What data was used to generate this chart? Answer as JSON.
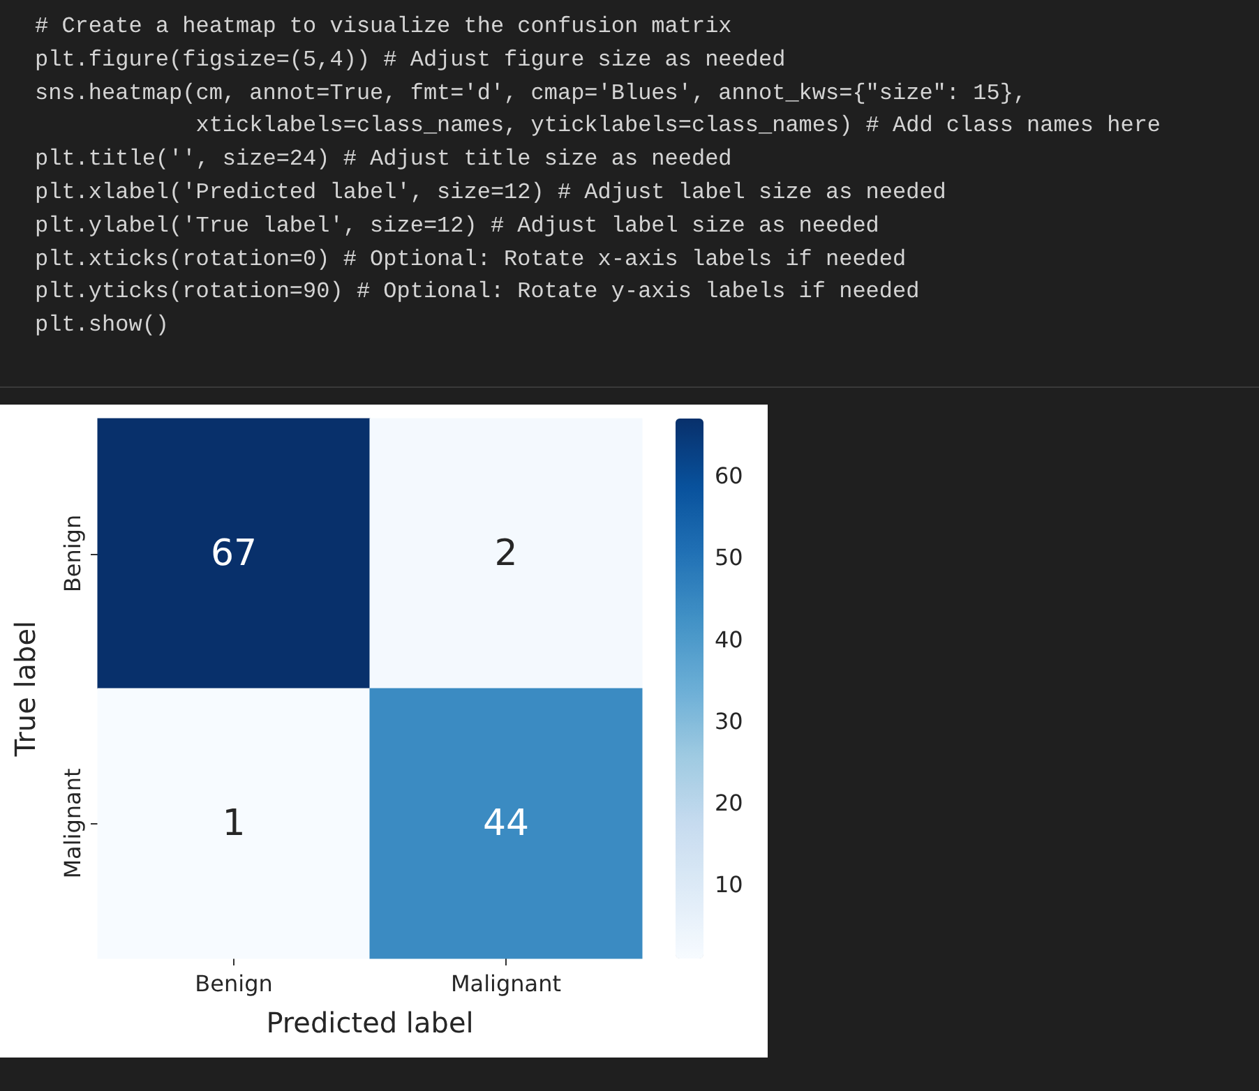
{
  "chart_data": {
    "type": "heatmap",
    "xlabel": "Predicted label",
    "ylabel": "True label",
    "categories": [
      "Benign",
      "Malignant"
    ],
    "y_categories": [
      "Benign",
      "Malignant"
    ],
    "cells": [
      [
        67,
        2
      ],
      [
        1,
        44
      ]
    ],
    "clim": [
      1,
      67
    ],
    "cticks": [
      10,
      20,
      30,
      40,
      50,
      60
    ],
    "data_labels": true,
    "annotations": [
      "# Create a heatmap to visualize the confusion matrix",
      "plt.figure(figsize=(5,4)) # Adjust figure size as needed",
      "sns.heatmap(cm, annot=True, fmt='d', cmap='Blues', annot_kws={\"size\": 15},",
      "            xticklabels=class_names, yticklabels=class_names) # Add class names here",
      "plt.title('', size=24) # Adjust title size as needed",
      "plt.xlabel('Predicted label', size=12) # Adjust label size as needed",
      "plt.ylabel('True label', size=12) # Adjust label size as needed",
      "plt.xticks(rotation=0) # Optional: Rotate x-axis labels if needed",
      "plt.yticks(rotation=90) # Optional: Rotate y-axis labels if needed",
      "plt.show()"
    ]
  }
}
